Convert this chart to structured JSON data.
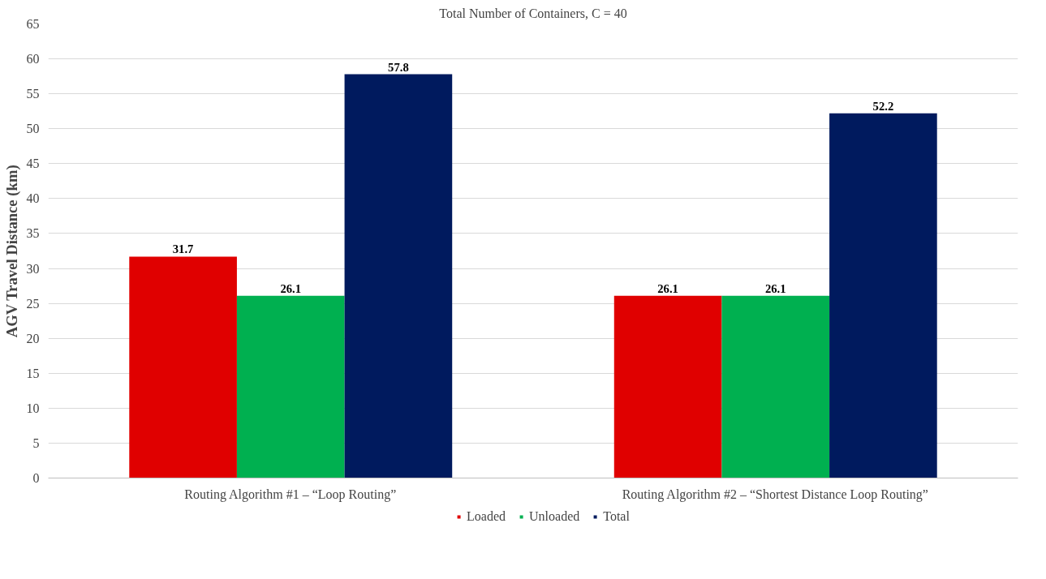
{
  "chart_data": {
    "type": "bar",
    "title": "Total Number of Containers, C = 40",
    "ylabel": "AGV Travel Distance (km)",
    "categories": [
      "Routing Algorithm #1 – “Loop Routing”",
      "Routing Algorithm #2 – “Shortest Distance Loop Routing”"
    ],
    "series": [
      {
        "name": "Loaded",
        "color": "#e00000",
        "values": [
          31.7,
          26.1
        ]
      },
      {
        "name": "Unloaded",
        "color": "#00b050",
        "values": [
          26.1,
          26.1
        ]
      },
      {
        "name": "Total",
        "color": "#001a5e",
        "values": [
          57.8,
          52.2
        ]
      }
    ],
    "ylim": [
      0,
      65
    ],
    "yticks": [
      0,
      5,
      10,
      15,
      20,
      25,
      30,
      35,
      40,
      45,
      50,
      55,
      60,
      65
    ],
    "grid": "y",
    "legend": "bottom",
    "data_labels": true
  }
}
